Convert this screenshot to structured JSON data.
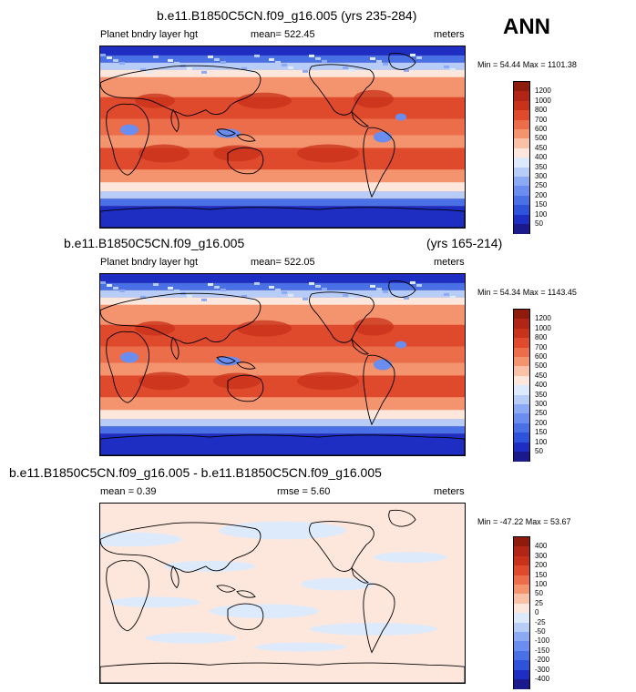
{
  "season": "ANN",
  "colors": {
    "ramp13": [
      "#1a1a8a",
      "#1f2ec2",
      "#2e52d9",
      "#4a70e6",
      "#6b8def",
      "#8ca9f4",
      "#b7cdf8",
      "#ddeafc",
      "#fde7dc",
      "#f9c1a6",
      "#f4946f",
      "#ec6d4a",
      "#de4a2b",
      "#c8321a",
      "#8f1b0d"
    ],
    "ramp15": [
      "#1a1a8a",
      "#1f2ec2",
      "#2e52d9",
      "#4a70e6",
      "#6b8def",
      "#8ca9f4",
      "#b7cdf8",
      "#ddeafc",
      "#fde7dc",
      "#f9c1a6",
      "#f4946f",
      "#ec6d4a",
      "#de4a2b",
      "#c8321a",
      "#b02516",
      "#8f1b0d"
    ]
  },
  "panels": [
    {
      "title": "b.e11.B1850C5CN.f09_g16.005 (yrs 235-284)",
      "field": "Planet bndry layer hgt",
      "mean": "mean= 522.45",
      "units": "meters",
      "minmax": "Min =  54.44 Max = 1101.38"
    },
    {
      "title": "b.e11.B1850C5CN.f09_g16.005",
      "years": "(yrs 165-214)",
      "field": "Planet bndry layer hgt",
      "mean": "mean= 522.05",
      "units": "meters",
      "minmax": "Min =  54.34 Max = 1143.45"
    },
    {
      "title": "b.e11.B1850C5CN.f09_g16.005 - b.e11.B1850C5CN.f09_g16.005",
      "mean": "mean =   0.39",
      "rmse": "rmse =   5.60",
      "units": "meters",
      "minmax": "Min = -47.22 Max =  53.67"
    }
  ],
  "chart_data": [
    {
      "type": "heatmap",
      "title": "b.e11.B1850C5CN.f09_g16.005 (yrs 235-284)",
      "variable": "Planet bndry layer hgt",
      "units": "meters",
      "mean": 522.45,
      "min": 54.44,
      "max": 1101.38,
      "colorbar_levels": [
        50,
        100,
        150,
        200,
        250,
        300,
        350,
        400,
        450,
        500,
        600,
        700,
        800,
        1000,
        1200
      ],
      "pattern": "high (600-1000) over subtropical oceans and deserts; low (<200) over Antarctica, Arctic and high latitudes"
    },
    {
      "type": "heatmap",
      "title": "b.e11.B1850C5CN.f09_g16.005 (yrs 165-214)",
      "variable": "Planet bndry layer hgt",
      "units": "meters",
      "mean": 522.05,
      "min": 54.34,
      "max": 1143.45,
      "colorbar_levels": [
        50,
        100,
        150,
        200,
        250,
        300,
        350,
        400,
        450,
        500,
        600,
        700,
        800,
        1000,
        1200
      ]
    },
    {
      "type": "heatmap",
      "title": "b.e11.B1850C5CN.f09_g16.005 - b.e11.B1850C5CN.f09_g16.005",
      "units": "meters",
      "mean": 0.39,
      "rmse": 5.6,
      "min": -47.22,
      "max": 53.67,
      "colorbar_levels": [
        -400,
        -300,
        -200,
        -150,
        -100,
        -50,
        -25,
        0,
        25,
        50,
        100,
        150,
        200,
        300,
        400
      ],
      "pattern": "nearly all values between -25 and 25 (light blue / light orange)"
    }
  ]
}
